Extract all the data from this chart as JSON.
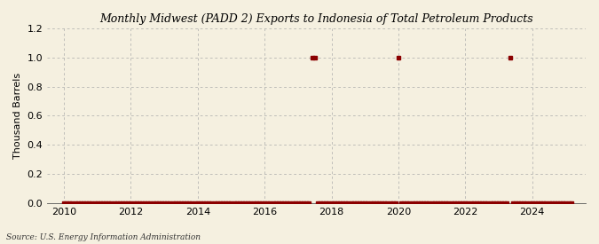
{
  "title": "Monthly Midwest (PADD 2) Exports to Indonesia of Total Petroleum Products",
  "ylabel": "Thousand Barrels",
  "source": "Source: U.S. Energy Information Administration",
  "background_color": "#f5f0e0",
  "plot_background_color": "#f5f0e0",
  "line_color": "#8b0000",
  "marker_color": "#8b0000",
  "grid_color": "#aaaaaa",
  "xlim_start": 2009.5,
  "xlim_end": 2025.6,
  "ylim": [
    0.0,
    1.2
  ],
  "yticks": [
    0.0,
    0.2,
    0.4,
    0.6,
    0.8,
    1.0,
    1.2
  ],
  "xticks": [
    2010,
    2012,
    2014,
    2016,
    2018,
    2020,
    2022,
    2024
  ],
  "data_points": [
    [
      2010.0,
      0
    ],
    [
      2010.083,
      0
    ],
    [
      2010.167,
      0
    ],
    [
      2010.25,
      0
    ],
    [
      2010.333,
      0
    ],
    [
      2010.417,
      0
    ],
    [
      2010.5,
      0
    ],
    [
      2010.583,
      0
    ],
    [
      2010.667,
      0
    ],
    [
      2010.75,
      0
    ],
    [
      2010.833,
      0
    ],
    [
      2010.917,
      0
    ],
    [
      2011.0,
      0
    ],
    [
      2011.083,
      0
    ],
    [
      2011.167,
      0
    ],
    [
      2011.25,
      0
    ],
    [
      2011.333,
      0
    ],
    [
      2011.417,
      0
    ],
    [
      2011.5,
      0
    ],
    [
      2011.583,
      0
    ],
    [
      2011.667,
      0
    ],
    [
      2011.75,
      0
    ],
    [
      2011.833,
      0
    ],
    [
      2011.917,
      0
    ],
    [
      2012.0,
      0
    ],
    [
      2012.083,
      0
    ],
    [
      2012.167,
      0
    ],
    [
      2012.25,
      0
    ],
    [
      2012.333,
      0
    ],
    [
      2012.417,
      0
    ],
    [
      2012.5,
      0
    ],
    [
      2012.583,
      0
    ],
    [
      2012.667,
      0
    ],
    [
      2012.75,
      0
    ],
    [
      2012.833,
      0
    ],
    [
      2012.917,
      0
    ],
    [
      2013.0,
      0
    ],
    [
      2013.083,
      0
    ],
    [
      2013.167,
      0
    ],
    [
      2013.25,
      0
    ],
    [
      2013.333,
      0
    ],
    [
      2013.417,
      0
    ],
    [
      2013.5,
      0
    ],
    [
      2013.583,
      0
    ],
    [
      2013.667,
      0
    ],
    [
      2013.75,
      0
    ],
    [
      2013.833,
      0
    ],
    [
      2013.917,
      0
    ],
    [
      2014.0,
      0
    ],
    [
      2014.083,
      0
    ],
    [
      2014.167,
      0
    ],
    [
      2014.25,
      0
    ],
    [
      2014.333,
      0
    ],
    [
      2014.417,
      0
    ],
    [
      2014.5,
      0
    ],
    [
      2014.583,
      0
    ],
    [
      2014.667,
      0
    ],
    [
      2014.75,
      0
    ],
    [
      2014.833,
      0
    ],
    [
      2014.917,
      0
    ],
    [
      2015.0,
      0
    ],
    [
      2015.083,
      0
    ],
    [
      2015.167,
      0
    ],
    [
      2015.25,
      0
    ],
    [
      2015.333,
      0
    ],
    [
      2015.417,
      0
    ],
    [
      2015.5,
      0
    ],
    [
      2015.583,
      0
    ],
    [
      2015.667,
      0
    ],
    [
      2015.75,
      0
    ],
    [
      2015.833,
      0
    ],
    [
      2015.917,
      0
    ],
    [
      2016.0,
      0
    ],
    [
      2016.083,
      0
    ],
    [
      2016.167,
      0
    ],
    [
      2016.25,
      0
    ],
    [
      2016.333,
      0
    ],
    [
      2016.417,
      0
    ],
    [
      2016.5,
      0
    ],
    [
      2016.583,
      0
    ],
    [
      2016.667,
      0
    ],
    [
      2016.75,
      0
    ],
    [
      2016.833,
      0
    ],
    [
      2016.917,
      0
    ],
    [
      2017.0,
      0
    ],
    [
      2017.083,
      0
    ],
    [
      2017.167,
      0
    ],
    [
      2017.25,
      0
    ],
    [
      2017.333,
      0
    ],
    [
      2017.417,
      1.0
    ],
    [
      2017.5,
      1.0
    ],
    [
      2017.583,
      0
    ],
    [
      2017.667,
      0
    ],
    [
      2017.75,
      0
    ],
    [
      2017.833,
      0
    ],
    [
      2017.917,
      0
    ],
    [
      2018.0,
      0
    ],
    [
      2018.083,
      0
    ],
    [
      2018.167,
      0
    ],
    [
      2018.25,
      0
    ],
    [
      2018.333,
      0
    ],
    [
      2018.417,
      0
    ],
    [
      2018.5,
      0
    ],
    [
      2018.583,
      0
    ],
    [
      2018.667,
      0
    ],
    [
      2018.75,
      0
    ],
    [
      2018.833,
      0
    ],
    [
      2018.917,
      0
    ],
    [
      2019.0,
      0
    ],
    [
      2019.083,
      0
    ],
    [
      2019.167,
      0
    ],
    [
      2019.25,
      0
    ],
    [
      2019.333,
      0
    ],
    [
      2019.417,
      0
    ],
    [
      2019.5,
      0
    ],
    [
      2019.583,
      0
    ],
    [
      2019.667,
      0
    ],
    [
      2019.75,
      0
    ],
    [
      2019.833,
      0
    ],
    [
      2019.917,
      0
    ],
    [
      2020.0,
      1.0
    ],
    [
      2020.083,
      0
    ],
    [
      2020.167,
      0
    ],
    [
      2020.25,
      0
    ],
    [
      2020.333,
      0
    ],
    [
      2020.417,
      0
    ],
    [
      2020.5,
      0
    ],
    [
      2020.583,
      0
    ],
    [
      2020.667,
      0
    ],
    [
      2020.75,
      0
    ],
    [
      2020.833,
      0
    ],
    [
      2020.917,
      0
    ],
    [
      2021.0,
      0
    ],
    [
      2021.083,
      0
    ],
    [
      2021.167,
      0
    ],
    [
      2021.25,
      0
    ],
    [
      2021.333,
      0
    ],
    [
      2021.417,
      0
    ],
    [
      2021.5,
      0
    ],
    [
      2021.583,
      0
    ],
    [
      2021.667,
      0
    ],
    [
      2021.75,
      0
    ],
    [
      2021.833,
      0
    ],
    [
      2021.917,
      0
    ],
    [
      2022.0,
      0
    ],
    [
      2022.083,
      0
    ],
    [
      2022.167,
      0
    ],
    [
      2022.25,
      0
    ],
    [
      2022.333,
      0
    ],
    [
      2022.417,
      0
    ],
    [
      2022.5,
      0
    ],
    [
      2022.583,
      0
    ],
    [
      2022.667,
      0
    ],
    [
      2022.75,
      0
    ],
    [
      2022.833,
      0
    ],
    [
      2022.917,
      0
    ],
    [
      2023.0,
      0
    ],
    [
      2023.083,
      0
    ],
    [
      2023.167,
      0
    ],
    [
      2023.25,
      0
    ],
    [
      2023.333,
      1.0
    ],
    [
      2023.417,
      0
    ],
    [
      2023.5,
      0
    ],
    [
      2023.583,
      0
    ],
    [
      2023.667,
      0
    ],
    [
      2023.75,
      0
    ],
    [
      2023.833,
      0
    ],
    [
      2023.917,
      0
    ],
    [
      2024.0,
      0
    ],
    [
      2024.083,
      0
    ],
    [
      2024.167,
      0
    ],
    [
      2024.25,
      0
    ],
    [
      2024.333,
      0
    ],
    [
      2024.417,
      0
    ],
    [
      2024.5,
      0
    ],
    [
      2024.583,
      0
    ],
    [
      2024.667,
      0
    ],
    [
      2024.75,
      0
    ],
    [
      2024.833,
      0
    ],
    [
      2024.917,
      0
    ],
    [
      2025.0,
      0
    ],
    [
      2025.083,
      0
    ],
    [
      2025.167,
      0
    ]
  ]
}
